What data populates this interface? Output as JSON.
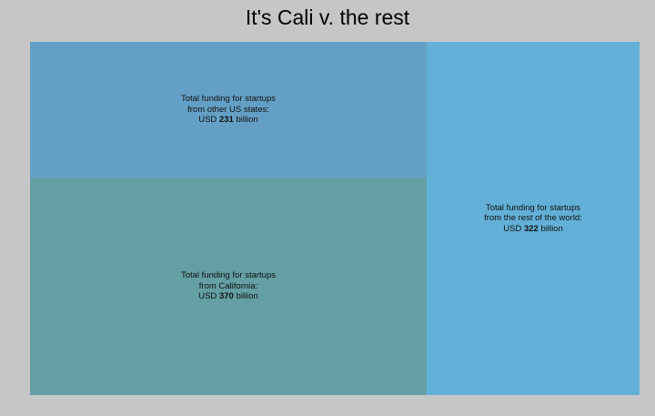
{
  "title": "It's Cali v. the rest",
  "chart_data": {
    "type": "treemap",
    "title": "It's Cali v. the rest",
    "unit": "USD billion",
    "tiles": [
      {
        "key": "other_us",
        "line1": "Total funding for startups",
        "line2": "from other US states:",
        "prefix": "USD",
        "value": 231,
        "suffix": "billion",
        "color": "#64a0c5"
      },
      {
        "key": "california",
        "line1": "Total funding for startups",
        "line2": "from California:",
        "prefix": "USD",
        "value": 370,
        "suffix": "billion",
        "color": "#639fa3"
      },
      {
        "key": "rest_world",
        "line1": "Total funding for startups",
        "line2": "from the rest of the world:",
        "prefix": "USD",
        "value": 322,
        "suffix": "billion",
        "color": "#62b0d7"
      }
    ]
  }
}
